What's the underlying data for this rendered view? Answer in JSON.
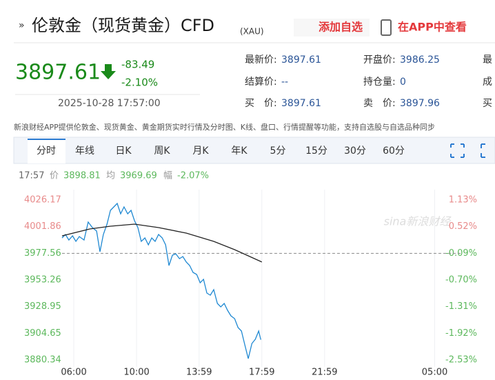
{
  "header": {
    "title": "伦敦金（现货黄金）CFD",
    "code": "(XAU)",
    "add": "添加自选",
    "app": "在APP中查看"
  },
  "quote": {
    "price": "3897.61",
    "change": "-83.49",
    "pct": "-2.10%",
    "time": "2025-10-28 17:57:00"
  },
  "stats": [
    {
      "label": "最新价:",
      "value": "3897.61"
    },
    {
      "label": "开盘价:",
      "value": "3986.25"
    },
    {
      "label": "最"
    },
    {
      "label": "结算价:",
      "value": "--"
    },
    {
      "label": "持仓量:",
      "value": "0"
    },
    {
      "label": "成"
    },
    {
      "label": "买　价:",
      "value": "3897.61"
    },
    {
      "label": "卖　价:",
      "value": "3897.96"
    },
    {
      "label": "买"
    }
  ],
  "notice": "新浪财经APP提供伦敦金、现货黄金、黄金期货实时行情及分时图、K线、盘口、行情提醒等功能，支持自选股与自选品种同步",
  "tabs": [
    "分时",
    "年线",
    "日K",
    "周K",
    "月K",
    "年K",
    "5分",
    "15分",
    "30分",
    "60分"
  ],
  "info": {
    "time": "17:57",
    "price_label": "价",
    "price": "3898.81",
    "avg_label": "均",
    "avg": "3969.69",
    "pct_label": "幅",
    "pct": "-2.07%"
  },
  "chart_data": {
    "type": "line",
    "watermark": "sina新浪财经",
    "xlim": [
      0,
      1450
    ],
    "xticks": [
      {
        "value": 45,
        "label": "06:00"
      },
      {
        "value": 285,
        "label": "10:00"
      },
      {
        "value": 524,
        "label": "13:59"
      },
      {
        "value": 764,
        "label": "17:59"
      },
      {
        "value": 1004,
        "label": "21:59"
      },
      {
        "value": 1425,
        "label": "05:00"
      }
    ],
    "ylim": [
      3880.34,
      4026.17
    ],
    "yticks": [
      3880.34,
      3904.65,
      3928.95,
      3953.26,
      3977.56,
      4001.86,
      4026.17
    ],
    "y2lim": [
      -2.53,
      1.13
    ],
    "y2ticks": [
      {
        "value": -2.53,
        "label": "-2.53%"
      },
      {
        "value": -1.92,
        "label": "-1.92%"
      },
      {
        "value": -1.31,
        "label": "-1.31%"
      },
      {
        "value": -0.7,
        "label": "-0.70%"
      },
      {
        "value": -0.09,
        "label": "-0.09%"
      },
      {
        "value": 0.52,
        "label": "0.52%"
      },
      {
        "value": 1.13,
        "label": "1.13%"
      }
    ],
    "baseline": 3977.56,
    "grid": true,
    "up_color": "#e88a8a",
    "down_color": "#5cb85c",
    "series": [
      {
        "color": "#1e88d2",
        "x": [
          0,
          13,
          26,
          40,
          53,
          66,
          84,
          100,
          116,
          132,
          145,
          158,
          172,
          185,
          198,
          211,
          224,
          237,
          251,
          264,
          277,
          290,
          303,
          317,
          330,
          343,
          356,
          369,
          383,
          396,
          409,
          422,
          435,
          449,
          462,
          475,
          488,
          501,
          515,
          528,
          541,
          554,
          567,
          580,
          594,
          607,
          620,
          633,
          646,
          660,
          673,
          686,
          699,
          712,
          726,
          739,
          752,
          760
        ],
        "values": [
          3991.6,
          3994.74,
          3989.71,
          3993.49,
          3988.46,
          3992.86,
          3989.71,
          4006.06,
          4001.03,
          3997.89,
          3979.03,
          3994.74,
          4004.17,
          4016.74,
          4019.88,
          4023.03,
          4013.6,
          4019.88,
          4013.6,
          4016.74,
          4007.31,
          4001.03,
          3988.46,
          3991.6,
          3985.32,
          3991.6,
          3988.46,
          3994.74,
          3991.6,
          3985.32,
          3966.46,
          3975.89,
          3977.14,
          3972.74,
          3974.63,
          3969.6,
          3966.46,
          3960.17,
          3958.29,
          3950.75,
          3953.89,
          3941.32,
          3939.43,
          3944.46,
          3931.89,
          3928.75,
          3931.89,
          3925.6,
          3920.58,
          3918.06,
          3909.89,
          3906.75,
          3894.18,
          3881.61,
          3895.44,
          3899.21,
          3906.75,
          3898.81
        ]
      },
      {
        "color": "#222222",
        "x": [
          0,
          106,
          185,
          277,
          369,
          475,
          580,
          660,
          764
        ],
        "values": [
          3993.49,
          3999.77,
          4002.29,
          4004.17,
          4001.03,
          3996.0,
          3988.46,
          3980.92,
          3969.69
        ]
      }
    ]
  }
}
